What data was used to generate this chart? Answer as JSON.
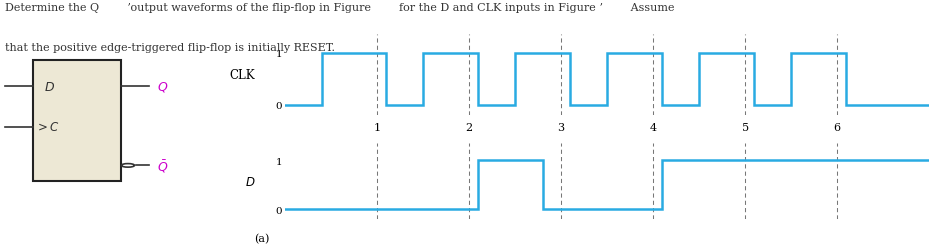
{
  "text_color": "#333333",
  "box_fill": "#ede8d5",
  "box_edge": "#222222",
  "wave_color": "#29abe2",
  "dashed_color": "#777777",
  "Q_color": "#cc00cc",
  "Qbar_color": "#cc00cc",
  "clk_times": [
    0.0,
    0.4,
    0.4,
    1.1,
    1.1,
    1.5,
    1.5,
    2.1,
    2.1,
    2.5,
    2.5,
    3.1,
    3.1,
    3.5,
    3.5,
    4.1,
    4.1,
    4.5,
    4.5,
    5.1,
    5.1,
    5.5,
    5.5,
    6.1,
    6.1,
    6.5,
    6.5,
    7.0
  ],
  "clk_vals": [
    0,
    0,
    1,
    1,
    0,
    0,
    1,
    1,
    0,
    0,
    1,
    1,
    0,
    0,
    1,
    1,
    0,
    0,
    1,
    1,
    0,
    0,
    1,
    1,
    0,
    0,
    0,
    0
  ],
  "d_times": [
    0.0,
    2.1,
    2.1,
    2.8,
    2.8,
    4.1,
    4.1,
    7.0
  ],
  "d_vals": [
    0,
    0,
    1,
    1,
    0,
    0,
    1,
    1
  ],
  "tick_positions": [
    1,
    2,
    3,
    4,
    5,
    6
  ],
  "dashed_positions": [
    1,
    2,
    3,
    4,
    5,
    6
  ],
  "figsize": [
    9.34,
    2.53
  ],
  "dpi": 100
}
